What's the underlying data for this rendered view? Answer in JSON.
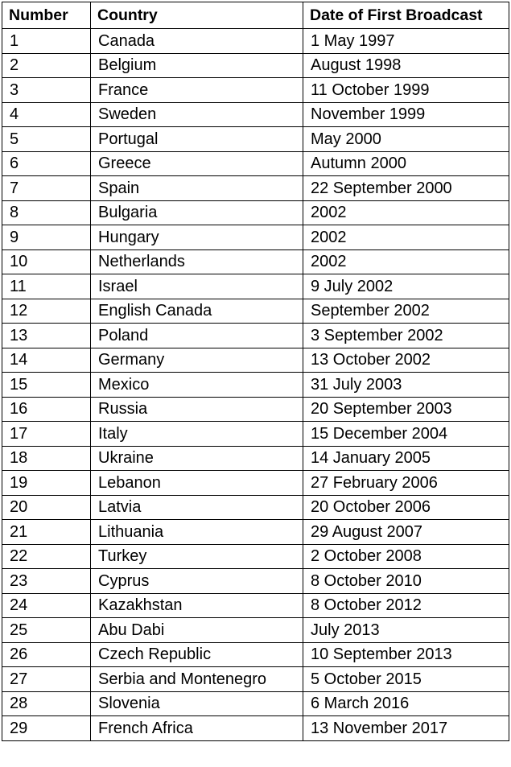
{
  "table": {
    "headers": [
      "Number",
      "Country",
      "Date of First Broadcast"
    ],
    "rows": [
      [
        "1",
        "Canada",
        "1 May 1997"
      ],
      [
        "2",
        "Belgium",
        "August 1998"
      ],
      [
        "3",
        "France",
        "11 October 1999"
      ],
      [
        "4",
        "Sweden",
        "November 1999"
      ],
      [
        "5",
        "Portugal",
        "May 2000"
      ],
      [
        "6",
        "Greece",
        "Autumn 2000"
      ],
      [
        "7",
        "Spain",
        "22 September 2000"
      ],
      [
        "8",
        "Bulgaria",
        "2002"
      ],
      [
        "9",
        "Hungary",
        "2002"
      ],
      [
        "10",
        "Netherlands",
        "2002"
      ],
      [
        "11",
        "Israel",
        "9 July 2002"
      ],
      [
        "12",
        "English Canada",
        "September 2002"
      ],
      [
        "13",
        "Poland",
        "3 September 2002"
      ],
      [
        "14",
        "Germany",
        "13 October 2002"
      ],
      [
        "15",
        "Mexico",
        "31 July 2003"
      ],
      [
        "16",
        "Russia",
        "20 September 2003"
      ],
      [
        "17",
        "Italy",
        "15 December 2004"
      ],
      [
        "18",
        "Ukraine",
        "14 January 2005"
      ],
      [
        "19",
        "Lebanon",
        "27 February 2006"
      ],
      [
        "20",
        "Latvia",
        "20 October 2006"
      ],
      [
        "21",
        "Lithuania",
        "29 August 2007"
      ],
      [
        "22",
        "Turkey",
        "2 October 2008"
      ],
      [
        "23",
        "Cyprus",
        "8 October 2010"
      ],
      [
        "24",
        "Kazakhstan",
        "8 October 2012"
      ],
      [
        "25",
        "Abu Dabi",
        "July 2013"
      ],
      [
        "26",
        "Czech Republic",
        "10 September 2013"
      ],
      [
        "27",
        "Serbia and Montenegro",
        "5 October 2015"
      ],
      [
        "28",
        "Slovenia",
        "6 March 2016"
      ],
      [
        "29",
        "French Africa",
        "13 November 2017"
      ]
    ]
  }
}
